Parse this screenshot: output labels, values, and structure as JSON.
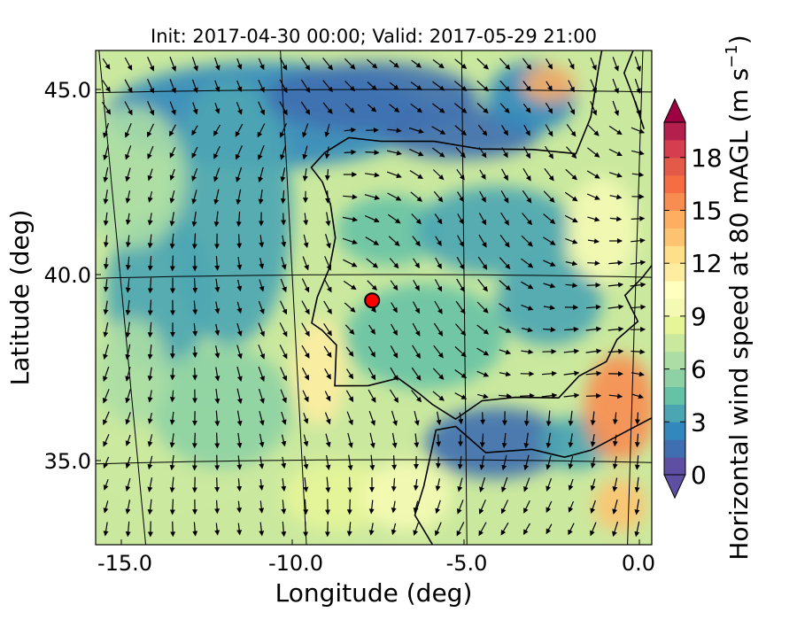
{
  "title": "Init: 2017-04-30 00:00; Valid: 2017-05-29 21:00",
  "x_axis": {
    "label": "Longitude (deg)",
    "ticks": [
      {
        "value": -15,
        "label": "-15.0"
      },
      {
        "value": -10,
        "label": "-10.0"
      },
      {
        "value": -5,
        "label": "-5.0"
      },
      {
        "value": 0,
        "label": "0.0"
      }
    ],
    "range": [
      -16,
      0.1
    ]
  },
  "y_axis": {
    "label": "Latitude (deg)",
    "ticks": [
      {
        "value": 45,
        "label": "45.0"
      },
      {
        "value": 40,
        "label": "40.0"
      },
      {
        "value": 35,
        "label": "35.0"
      }
    ],
    "range": [
      32.6,
      46.0
    ]
  },
  "colorbar": {
    "label_main": "Horizontal wind speed at 80 mAGL (m s",
    "label_sup": "−1",
    "label_end": ")",
    "ticks": [
      {
        "value": 0,
        "label": "0"
      },
      {
        "value": 3,
        "label": "3"
      },
      {
        "value": 6,
        "label": "6"
      },
      {
        "value": 9,
        "label": "9"
      },
      {
        "value": 12,
        "label": "12"
      },
      {
        "value": 15,
        "label": "15"
      },
      {
        "value": 18,
        "label": "18"
      }
    ],
    "range": [
      0,
      20
    ],
    "extend": "both",
    "colormap": [
      "#5e4fa2",
      "#3f6fb0",
      "#3288bd",
      "#4ba5b2",
      "#66c2a5",
      "#8dd1a4",
      "#abdda4",
      "#cbe99e",
      "#e6f598",
      "#f4f9b4",
      "#ffffbf",
      "#feeda1",
      "#fee08b",
      "#fdc370",
      "#fdae61",
      "#f88d52",
      "#f46d43",
      "#e45a49",
      "#d53e4f",
      "#b3204d",
      "#9e0142"
    ]
  },
  "marker": {
    "name": "site",
    "lon": -7.7,
    "lat": 39.3,
    "color": "#ff0000"
  },
  "map": {
    "region": "Iberian Peninsula and surrounding Atlantic / Mediterranean",
    "features": [
      "coastlines",
      "graticule",
      "wind speed filled contours",
      "wind vector arrows"
    ]
  }
}
